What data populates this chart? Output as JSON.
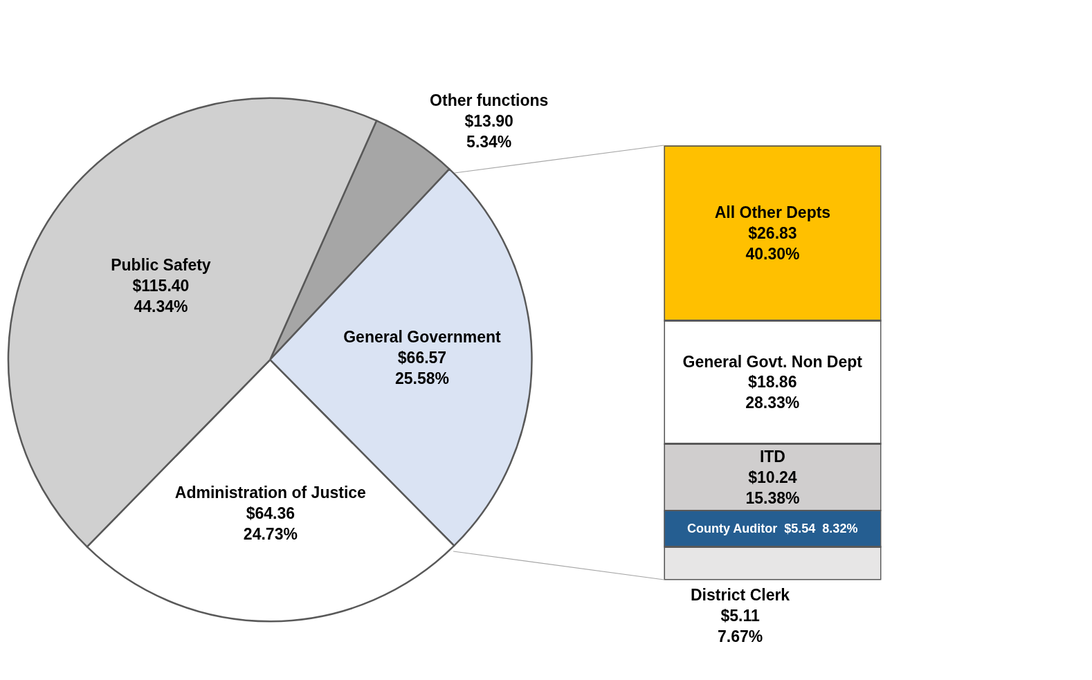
{
  "chart_data": [
    {
      "type": "pie",
      "categories": [
        "Other functions",
        "General Government",
        "Administration of Justice",
        "Public Safety"
      ],
      "values": [
        13.9,
        66.57,
        64.36,
        115.4
      ],
      "colors": [
        "#a6a6a6",
        "#dae3f3",
        "#ffffff",
        "#d0d0d0"
      ],
      "value_labels": [
        "$13.90\n5.34%",
        "$66.57\n25.58%",
        "$64.36\n24.73%",
        "$115.40\n44.34%"
      ]
    },
    {
      "type": "bar",
      "stacked": true,
      "categories": [
        null
      ],
      "tick_labels": false,
      "series": [
        {
          "name": "District Clerk",
          "color": "#e7e6e6",
          "values": [
            5.11
          ],
          "value_labels": [
            "$5.11\n7.67%"
          ]
        },
        {
          "name": "County Auditor",
          "color": "#255e91",
          "values": [
            5.54
          ],
          "value_labels": [
            "$5.54\n8.32%"
          ]
        },
        {
          "name": "ITD",
          "color": "#d0cece",
          "values": [
            10.24
          ],
          "value_labels": [
            "$10.24\n15.38%"
          ]
        },
        {
          "name": "General Govt. Non Dept",
          "color": "#ffffff",
          "values": [
            18.86
          ],
          "value_labels": [
            "$18.86\n28.33%"
          ]
        },
        {
          "name": "All Other Depts",
          "color": "#ffc000",
          "values": [
            26.83
          ],
          "value_labels": [
            "$26.83\n40.30%"
          ]
        }
      ]
    }
  ]
}
